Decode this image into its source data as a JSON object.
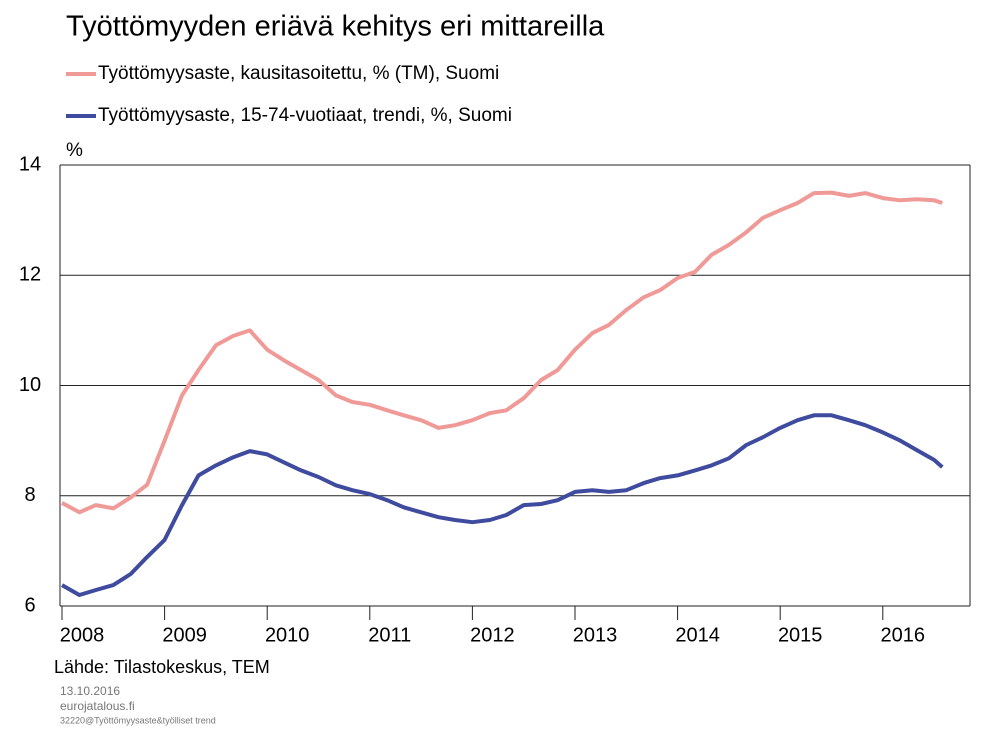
{
  "chart_data": {
    "type": "line",
    "title": "Työttömyyden eriävä kehitys eri mittareilla",
    "y_unit": "%",
    "source": "Lähde: Tilastokeskus, TEM",
    "footer": [
      "13.10.2016",
      "eurojatalous.fi",
      "32220@Työttömyysaste&työlliset trend"
    ],
    "x": [
      2008.0,
      2008.17,
      2008.33,
      2008.5,
      2008.67,
      2008.83,
      2009.0,
      2009.17,
      2009.33,
      2009.5,
      2009.67,
      2009.83,
      2010.0,
      2010.17,
      2010.33,
      2010.5,
      2010.67,
      2010.83,
      2011.0,
      2011.17,
      2011.33,
      2011.5,
      2011.67,
      2011.83,
      2012.0,
      2012.17,
      2012.33,
      2012.5,
      2012.67,
      2012.83,
      2013.0,
      2013.17,
      2013.33,
      2013.5,
      2013.67,
      2013.83,
      2014.0,
      2014.17,
      2014.33,
      2014.5,
      2014.67,
      2014.83,
      2015.0,
      2015.17,
      2015.33,
      2015.5,
      2015.67,
      2015.83,
      2016.0,
      2016.17,
      2016.33,
      2016.5,
      2016.58
    ],
    "series": [
      {
        "name": "Työttömyysaste, kausitasoitettu, % (TM), Suomi",
        "color": "#f09a98",
        "values": [
          7.87,
          7.7,
          7.83,
          7.77,
          7.97,
          8.2,
          9.0,
          9.82,
          10.28,
          10.73,
          10.9,
          11.0,
          10.65,
          10.45,
          10.28,
          10.1,
          9.82,
          9.7,
          9.65,
          9.55,
          9.46,
          9.37,
          9.23,
          9.28,
          9.37,
          9.5,
          9.55,
          9.77,
          10.1,
          10.28,
          10.65,
          10.95,
          11.1,
          11.37,
          11.6,
          11.73,
          11.95,
          12.06,
          12.37,
          12.55,
          12.78,
          13.04,
          13.18,
          13.31,
          13.49,
          13.5,
          13.44,
          13.49,
          13.4,
          13.36,
          13.38,
          13.36,
          13.31
        ]
      },
      {
        "name": "Työttömyysaste, 15-74-vuotiaat, trendi, %, Suomi",
        "color": "#3f4b9e",
        "values": [
          6.38,
          6.2,
          6.29,
          6.38,
          6.58,
          6.89,
          7.2,
          7.83,
          8.37,
          8.55,
          8.7,
          8.81,
          8.75,
          8.6,
          8.46,
          8.34,
          8.19,
          8.1,
          8.03,
          7.92,
          7.79,
          7.7,
          7.61,
          7.56,
          7.52,
          7.56,
          7.65,
          7.83,
          7.85,
          7.92,
          8.07,
          8.1,
          8.07,
          8.1,
          8.23,
          8.32,
          8.37,
          8.46,
          8.55,
          8.68,
          8.92,
          9.06,
          9.23,
          9.37,
          9.46,
          9.46,
          9.37,
          9.28,
          9.15,
          9.0,
          8.83,
          8.65,
          8.52
        ]
      }
    ],
    "xlim": [
      2008,
      2016.85
    ],
    "xticks": [
      2008,
      2009,
      2010,
      2011,
      2012,
      2013,
      2014,
      2015,
      2016
    ],
    "ylim": [
      6,
      14
    ],
    "yticks": [
      6,
      8,
      10,
      12,
      14
    ],
    "grid": true
  }
}
